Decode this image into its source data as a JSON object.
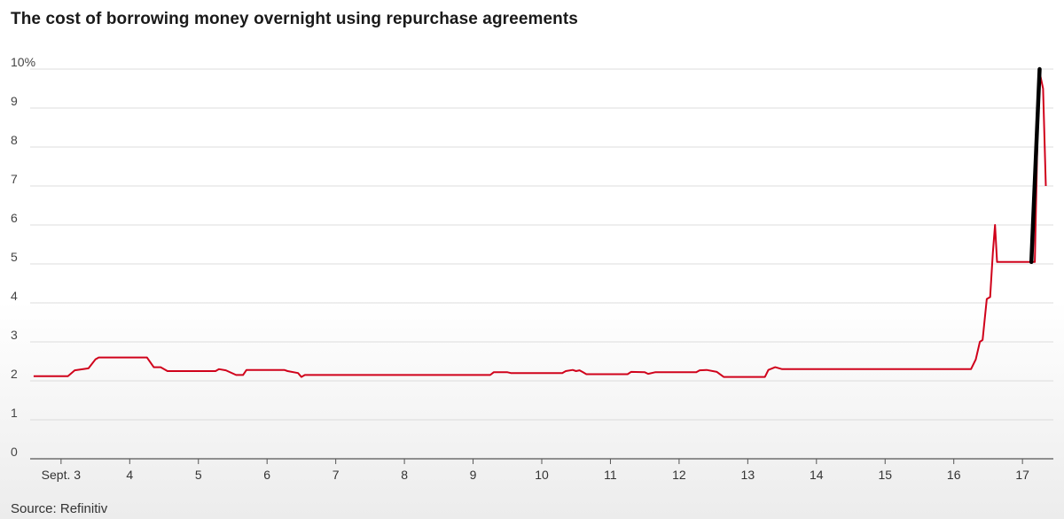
{
  "title": "The cost of borrowing money overnight using repurchase agreements",
  "source": "Source: Refinitiv",
  "colors": {
    "line": "#d0021b",
    "highlight": "#000000",
    "grid": "#dcdcdc"
  },
  "chart_data": {
    "type": "line",
    "title": "The cost of borrowing money overnight using repurchase agreements",
    "xlabel": "",
    "ylabel": "",
    "ylim": [
      0,
      10
    ],
    "xlim": [
      2.55,
      17.45
    ],
    "yticks": [
      "0",
      "1",
      "2",
      "3",
      "4",
      "5",
      "6",
      "7",
      "8",
      "9",
      "10%"
    ],
    "xticks": [
      {
        "value": 3,
        "label": "Sept. 3"
      },
      {
        "value": 4,
        "label": "4"
      },
      {
        "value": 5,
        "label": "5"
      },
      {
        "value": 6,
        "label": "6"
      },
      {
        "value": 7,
        "label": "7"
      },
      {
        "value": 8,
        "label": "8"
      },
      {
        "value": 9,
        "label": "9"
      },
      {
        "value": 10,
        "label": "10"
      },
      {
        "value": 11,
        "label": "11"
      },
      {
        "value": 12,
        "label": "12"
      },
      {
        "value": 13,
        "label": "13"
      },
      {
        "value": 14,
        "label": "14"
      },
      {
        "value": 15,
        "label": "15"
      },
      {
        "value": 16,
        "label": "16"
      },
      {
        "value": 17,
        "label": "17"
      }
    ],
    "grid": true,
    "legend": "none",
    "series": [
      {
        "points": [
          [
            2.6,
            2.12
          ],
          [
            3.1,
            2.12
          ],
          [
            3.2,
            2.27
          ],
          [
            3.4,
            2.32
          ],
          [
            3.5,
            2.55
          ],
          [
            3.55,
            2.6
          ],
          [
            4.25,
            2.6
          ],
          [
            4.35,
            2.35
          ],
          [
            4.45,
            2.35
          ],
          [
            4.55,
            2.25
          ],
          [
            5.25,
            2.25
          ],
          [
            5.3,
            2.3
          ],
          [
            5.4,
            2.27
          ],
          [
            5.55,
            2.15
          ],
          [
            5.65,
            2.15
          ],
          [
            5.7,
            2.28
          ],
          [
            6.25,
            2.28
          ],
          [
            6.3,
            2.25
          ],
          [
            6.45,
            2.2
          ],
          [
            6.5,
            2.1
          ],
          [
            6.55,
            2.15
          ],
          [
            9.25,
            2.15
          ],
          [
            9.3,
            2.22
          ],
          [
            9.5,
            2.22
          ],
          [
            9.55,
            2.2
          ],
          [
            10.3,
            2.2
          ],
          [
            10.35,
            2.25
          ],
          [
            10.45,
            2.28
          ],
          [
            10.5,
            2.25
          ],
          [
            10.55,
            2.27
          ],
          [
            10.6,
            2.22
          ],
          [
            10.65,
            2.17
          ],
          [
            11.25,
            2.17
          ],
          [
            11.3,
            2.23
          ],
          [
            11.5,
            2.22
          ],
          [
            11.55,
            2.18
          ],
          [
            11.65,
            2.22
          ],
          [
            12.25,
            2.22
          ],
          [
            12.3,
            2.27
          ],
          [
            12.4,
            2.28
          ],
          [
            12.55,
            2.23
          ],
          [
            12.65,
            2.1
          ],
          [
            13.25,
            2.1
          ],
          [
            13.3,
            2.28
          ],
          [
            13.4,
            2.35
          ],
          [
            13.5,
            2.3
          ],
          [
            16.25,
            2.3
          ],
          [
            16.32,
            2.55
          ],
          [
            16.38,
            3.0
          ],
          [
            16.42,
            3.05
          ],
          [
            16.48,
            4.1
          ],
          [
            16.53,
            4.15
          ],
          [
            16.57,
            5.3
          ],
          [
            16.6,
            6.0
          ],
          [
            16.63,
            5.05
          ],
          [
            17.12,
            5.05
          ],
          [
            17.18,
            5.05
          ],
          [
            17.24,
            10.0
          ],
          [
            17.3,
            9.5
          ],
          [
            17.34,
            7.0
          ]
        ]
      }
    ],
    "highlight": [
      [
        17.13,
        5.05
      ],
      [
        17.25,
        10.0
      ]
    ]
  }
}
